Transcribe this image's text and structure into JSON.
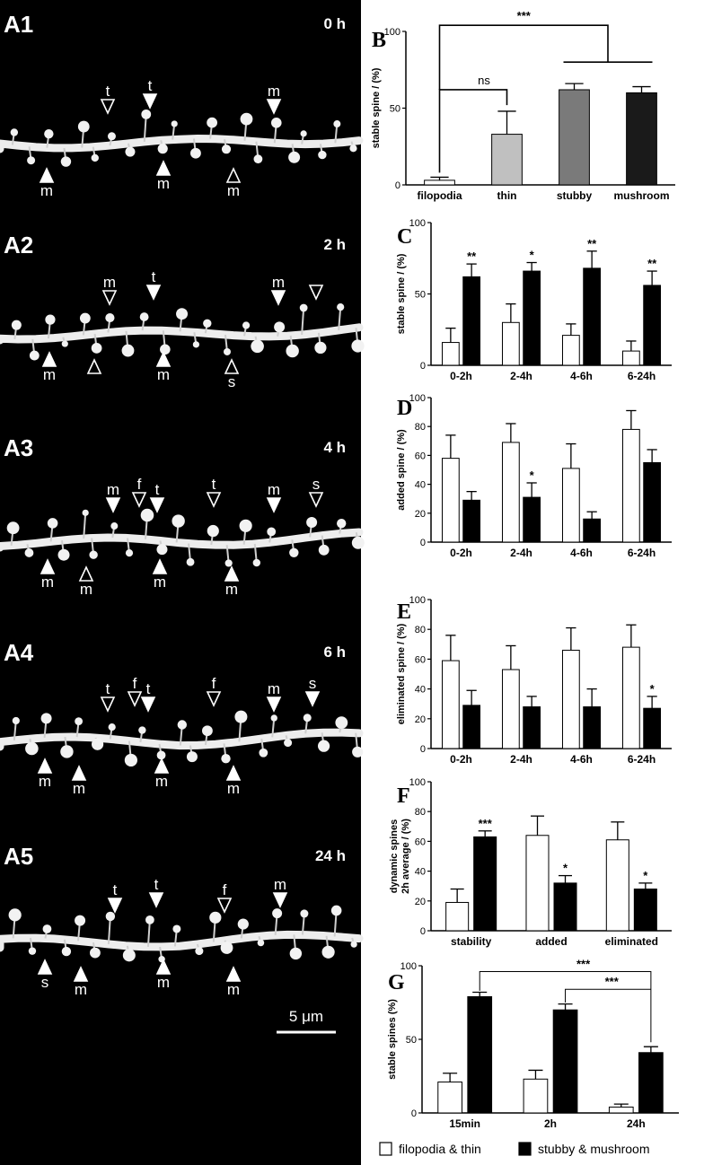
{
  "micrograph": {
    "frames": [
      {
        "panel": "A1",
        "time": "0 h",
        "arrows": [
          {
            "label": "t",
            "dir": "down",
            "filled": false
          },
          {
            "label": "t",
            "dir": "down",
            "filled": true
          },
          {
            "label": "m",
            "dir": "down",
            "filled": true
          },
          {
            "label": "m",
            "dir": "up",
            "filled": true
          },
          {
            "label": "m",
            "dir": "up",
            "filled": true
          },
          {
            "label": "m",
            "dir": "up",
            "filled": false
          }
        ]
      },
      {
        "panel": "A2",
        "time": "2 h",
        "arrows": [
          {
            "label": "m",
            "dir": "down",
            "filled": false
          },
          {
            "label": "t",
            "dir": "down",
            "filled": true
          },
          {
            "label": "m",
            "dir": "down",
            "filled": true
          },
          {
            "label": "",
            "dir": "down",
            "filled": false
          },
          {
            "label": "m",
            "dir": "up",
            "filled": true
          },
          {
            "label": "",
            "dir": "up",
            "filled": false
          },
          {
            "label": "m",
            "dir": "up",
            "filled": true
          },
          {
            "label": "s",
            "dir": "up",
            "filled": false
          }
        ]
      },
      {
        "panel": "A3",
        "time": "4 h",
        "arrows": [
          {
            "label": "m",
            "dir": "down",
            "filled": true
          },
          {
            "label": "f",
            "dir": "down",
            "filled": false
          },
          {
            "label": "t",
            "dir": "down",
            "filled": true
          },
          {
            "label": "t",
            "dir": "down",
            "filled": false
          },
          {
            "label": "m",
            "dir": "down",
            "filled": true
          },
          {
            "label": "s",
            "dir": "down",
            "filled": false
          },
          {
            "label": "m",
            "dir": "up",
            "filled": true
          },
          {
            "label": "m",
            "dir": "up",
            "filled": false
          },
          {
            "label": "m",
            "dir": "up",
            "filled": true
          },
          {
            "label": "m",
            "dir": "up",
            "filled": true
          }
        ]
      },
      {
        "panel": "A4",
        "time": "6 h",
        "arrows": [
          {
            "label": "t",
            "dir": "down",
            "filled": false
          },
          {
            "label": "f",
            "dir": "down",
            "filled": false
          },
          {
            "label": "t",
            "dir": "down",
            "filled": true
          },
          {
            "label": "f",
            "dir": "down",
            "filled": false
          },
          {
            "label": "m",
            "dir": "down",
            "filled": true
          },
          {
            "label": "s",
            "dir": "down",
            "filled": true
          },
          {
            "label": "m",
            "dir": "up",
            "filled": true
          },
          {
            "label": "m",
            "dir": "up",
            "filled": true
          },
          {
            "label": "m",
            "dir": "up",
            "filled": true
          },
          {
            "label": "m",
            "dir": "up",
            "filled": true
          }
        ]
      },
      {
        "panel": "A5",
        "time": "24 h",
        "arrows": [
          {
            "label": "t",
            "dir": "down",
            "filled": true
          },
          {
            "label": "t",
            "dir": "down",
            "filled": true
          },
          {
            "label": "f",
            "dir": "down",
            "filled": false
          },
          {
            "label": "m",
            "dir": "down",
            "filled": true
          },
          {
            "label": "s",
            "dir": "up",
            "filled": true
          },
          {
            "label": "m",
            "dir": "up",
            "filled": true
          },
          {
            "label": "m",
            "dir": "up",
            "filled": true
          },
          {
            "label": "m",
            "dir": "up",
            "filled": true
          }
        ]
      }
    ],
    "scale_bar": "5 μm"
  },
  "chart_data": [
    {
      "panel": "B",
      "type": "bar",
      "ylabel": "stable spine / (%)",
      "ylim": [
        0,
        100
      ],
      "yticks": [
        0,
        50,
        100
      ],
      "categories": [
        "filopodia",
        "thin",
        "stubby",
        "mushroom"
      ],
      "values": [
        3,
        33,
        62,
        60
      ],
      "errors": [
        2,
        15,
        4,
        4
      ],
      "colors": [
        "#ffffff",
        "#c0c0c0",
        "#7a7a7a",
        "#1a1a1a"
      ],
      "annotations": [
        "ns",
        "***"
      ]
    },
    {
      "panel": "C",
      "type": "bar",
      "ylabel": "stable spine / (%)",
      "ylim": [
        0,
        100
      ],
      "yticks": [
        0,
        50,
        100
      ],
      "categories": [
        "0-2h",
        "2-4h",
        "4-6h",
        "6-24h"
      ],
      "series": [
        {
          "values": [
            16,
            30,
            21,
            10
          ],
          "errors": [
            10,
            13,
            8,
            7
          ]
        },
        {
          "values": [
            62,
            66,
            68,
            56
          ],
          "errors": [
            9,
            6,
            12,
            10
          ]
        }
      ],
      "significance": [
        "**",
        "*",
        "**",
        "**"
      ]
    },
    {
      "panel": "D",
      "type": "bar",
      "ylabel": "added spine / (%)",
      "ylim": [
        0,
        100
      ],
      "yticks": [
        0,
        20,
        40,
        60,
        80,
        100
      ],
      "categories": [
        "0-2h",
        "2-4h",
        "4-6h",
        "6-24h"
      ],
      "series": [
        {
          "values": [
            58,
            69,
            51,
            78
          ],
          "errors": [
            16,
            13,
            17,
            13
          ]
        },
        {
          "values": [
            29,
            31,
            16,
            55
          ],
          "errors": [
            6,
            10,
            5,
            9
          ]
        }
      ],
      "significance": [
        "",
        "*",
        "",
        ""
      ]
    },
    {
      "panel": "E",
      "type": "bar",
      "ylabel": "eliminated spine / (%)",
      "ylim": [
        0,
        100
      ],
      "yticks": [
        0,
        20,
        40,
        60,
        80,
        100
      ],
      "categories": [
        "0-2h",
        "2-4h",
        "4-6h",
        "6-24h"
      ],
      "series": [
        {
          "values": [
            59,
            53,
            66,
            68
          ],
          "errors": [
            17,
            16,
            15,
            15
          ]
        },
        {
          "values": [
            29,
            28,
            28,
            27
          ],
          "errors": [
            10,
            7,
            12,
            8
          ]
        }
      ],
      "significance": [
        "",
        "",
        "",
        "*"
      ]
    },
    {
      "panel": "F",
      "type": "bar",
      "ylabel": "dynamic spines 2h average / (%)",
      "ylabel_lines": [
        "dynamic spines",
        "2h average / (%)"
      ],
      "ylim": [
        0,
        100
      ],
      "yticks": [
        0,
        20,
        40,
        60,
        80,
        100
      ],
      "categories": [
        "stability",
        "added",
        "eliminated"
      ],
      "series": [
        {
          "values": [
            19,
            64,
            61
          ],
          "errors": [
            9,
            13,
            12
          ]
        },
        {
          "values": [
            63,
            32,
            28
          ],
          "errors": [
            4,
            5,
            4
          ]
        }
      ],
      "significance": [
        "***",
        "*",
        "*"
      ]
    },
    {
      "panel": "G",
      "type": "bar",
      "ylabel": "stable spines (%)",
      "ylim": [
        0,
        100
      ],
      "yticks": [
        0,
        50,
        100
      ],
      "categories": [
        "15min",
        "2h",
        "24h"
      ],
      "series": [
        {
          "values": [
            21,
            23,
            4
          ],
          "errors": [
            6,
            6,
            2
          ]
        },
        {
          "values": [
            79,
            70,
            41
          ],
          "errors": [
            3,
            4,
            4
          ]
        }
      ],
      "annotations": [
        "***",
        "***"
      ]
    }
  ],
  "legend": {
    "items": [
      {
        "label": "filopodia & thin",
        "color": "#ffffff"
      },
      {
        "label": "stubby & mushroom",
        "color": "#000000"
      }
    ]
  }
}
